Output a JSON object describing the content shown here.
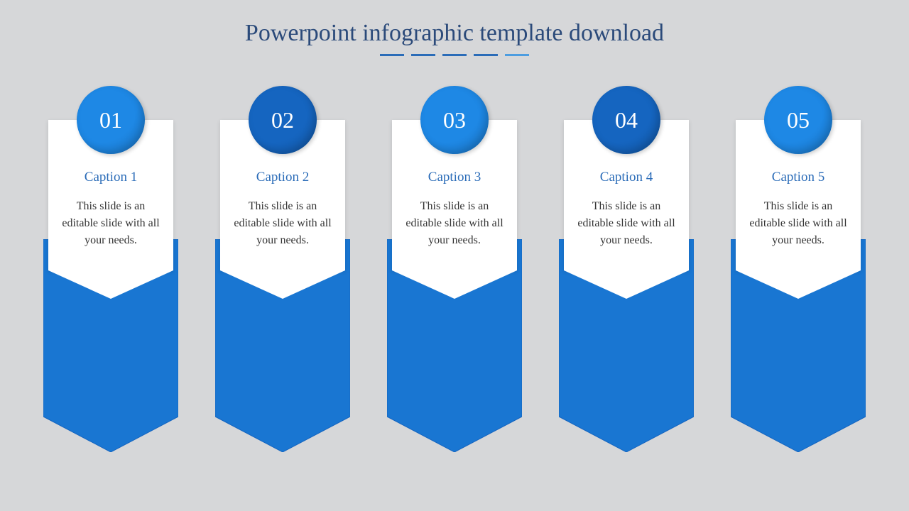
{
  "title": "Powerpoint infographic template download",
  "background_color": "#d6d7d9",
  "title_color": "#2b4a7a",
  "title_fontsize": 34,
  "dashes": {
    "count": 5,
    "color_primary": "#2b6cb8",
    "color_tail": "#4d9de0",
    "width": 34,
    "height": 3
  },
  "card_body_text": "This slide is an editable slide with all your needs.",
  "caption_color": "#2b6cb8",
  "body_color": "#333333",
  "white_card_bg": "#ffffff",
  "arrow_back_color": "#1976d2",
  "arrow_back_stroke": "#1565c0",
  "circle_light": "#1e88e5",
  "circle_dark": "#1565c0",
  "cards": [
    {
      "number": "01",
      "caption": "Caption 1",
      "circle_color": "#1e88e5"
    },
    {
      "number": "02",
      "caption": "Caption 2",
      "circle_color": "#1565c0"
    },
    {
      "number": "03",
      "caption": "Caption 3",
      "circle_color": "#1e88e5"
    },
    {
      "number": "04",
      "caption": "Caption 4",
      "circle_color": "#1565c0"
    },
    {
      "number": "05",
      "caption": "Caption 5",
      "circle_color": "#1e88e5"
    }
  ]
}
